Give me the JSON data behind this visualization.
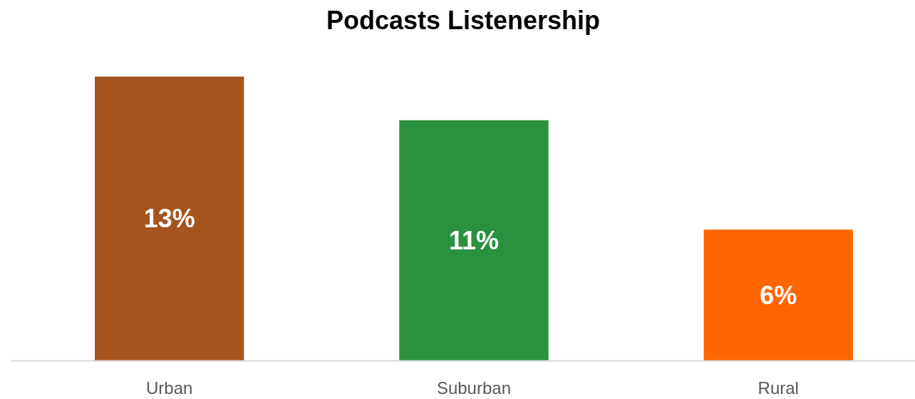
{
  "chart_data": {
    "type": "bar",
    "title": "Podcasts Listenership",
    "categories": [
      "Urban",
      "Suburban",
      "Rural"
    ],
    "values": [
      13,
      11,
      6
    ],
    "colors": [
      "#a5541e",
      "#2a913c",
      "#ff6600"
    ],
    "value_labels": [
      "13%",
      "11%",
      "6%"
    ],
    "grid": false
  }
}
